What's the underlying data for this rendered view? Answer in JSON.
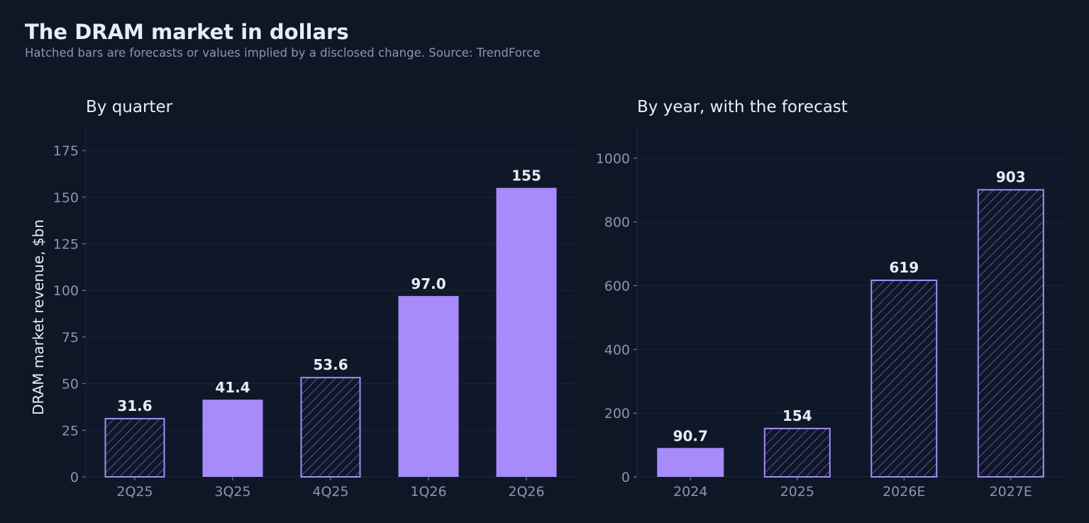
{
  "title": "The DRAM market in dollars",
  "subtitle": "Hatched bars are forecasts or values implied by a disclosed change. Source: TrendForce",
  "colors": {
    "background": "#0e1726",
    "plot_background": "#0f1828",
    "bar_fill": "#a78bfa",
    "hatch_stroke": "#a78bfa",
    "text": "#e8edf5",
    "muted_text": "#8a96ab",
    "grid": "#1b2536"
  },
  "chart_data": [
    {
      "type": "bar",
      "title": "By quarter",
      "ylabel": "DRAM market revenue, $bn",
      "xlabel": "",
      "categories": [
        "2Q25",
        "3Q25",
        "4Q25",
        "1Q26",
        "2Q26"
      ],
      "values": [
        31.6,
        41.4,
        53.6,
        97.0,
        155
      ],
      "hatched": [
        true,
        false,
        true,
        false,
        false
      ],
      "data_labels": [
        "31.6",
        "41.4",
        "53.6",
        "97.0",
        "155"
      ],
      "yticks": [
        0,
        25,
        50,
        75,
        100,
        125,
        150,
        175
      ],
      "ylim": [
        0,
        188
      ],
      "grid": true
    },
    {
      "type": "bar",
      "title": "By year, with the forecast",
      "ylabel": "",
      "xlabel": "",
      "categories": [
        "2024",
        "2025",
        "2026E",
        "2027E"
      ],
      "values": [
        90.7,
        154,
        619,
        903
      ],
      "hatched": [
        false,
        true,
        true,
        true
      ],
      "data_labels": [
        "90.7",
        "154",
        "619",
        "903"
      ],
      "yticks": [
        0,
        200,
        400,
        600,
        800,
        1000
      ],
      "ylim": [
        0,
        1100
      ],
      "grid": true
    }
  ]
}
